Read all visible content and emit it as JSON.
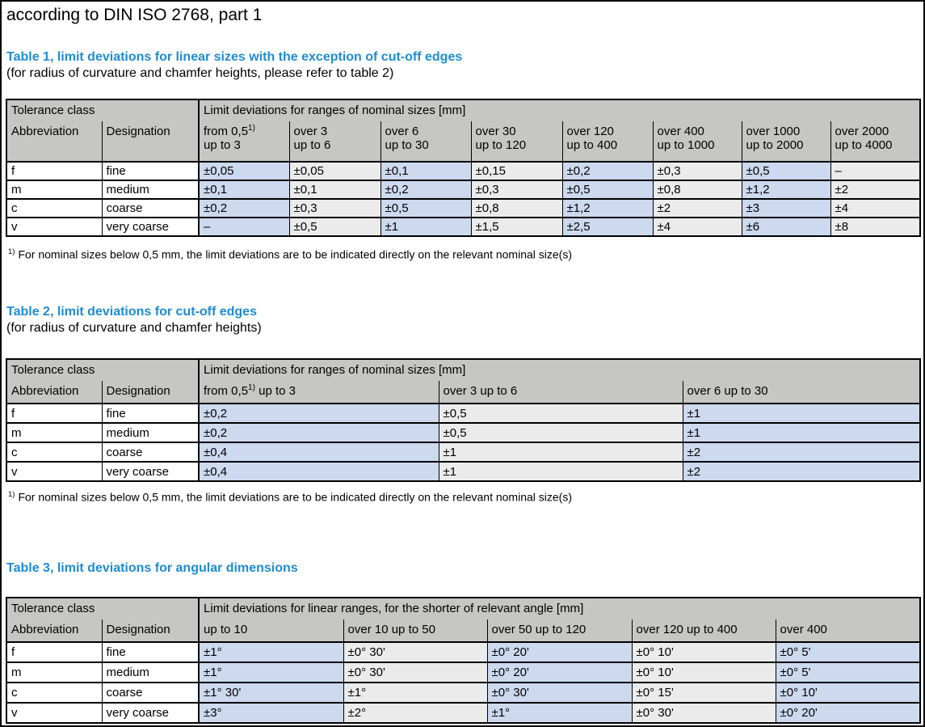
{
  "page_title": "according to DIN ISO 2768, part 1",
  "colors": {
    "heading_blue": "#1e8cd2",
    "cell_blue": "#ccd9ee",
    "cell_gray": "#ebebeb",
    "header_gray": "#c6c6c4"
  },
  "footnote": {
    "marker": "1)",
    "text": "For nominal sizes below 0,5 mm, the limit deviations are to be indicated directly on the relevant nominal size(s)"
  },
  "tables": [
    {
      "heading": "Table 1, limit deviations for linear sizes with the exception of cut-off edges",
      "subheading": "(for radius of curvature and chamfer heights, please refer to table 2)",
      "tolerance_class_label": "Tolerance class",
      "ranges_label": "Limit deviations for ranges of nominal sizes [mm]",
      "abbreviation_label": "Abbreviation",
      "designation_label": "Designation",
      "range_headers": [
        [
          {
            "t": "from 0,5"
          },
          {
            "sup": "1)"
          },
          {
            "t": "\nup to 3"
          }
        ],
        [
          {
            "t": "over 3\nup to 6"
          }
        ],
        [
          {
            "t": "over 6\nup to 30"
          }
        ],
        [
          {
            "t": "over 30\nup to 120"
          }
        ],
        [
          {
            "t": "over 120\nup to 400"
          }
        ],
        [
          {
            "t": "over 400\nup to 1000"
          }
        ],
        [
          {
            "t": "over 1000\nup to 2000"
          }
        ],
        [
          {
            "t": "over 2000\nup to 4000"
          }
        ]
      ],
      "rows": [
        {
          "abbreviation": "f",
          "designation": "fine",
          "values": [
            "±0,05",
            "±0,05",
            "±0,1",
            "±0,15",
            "±0,2",
            "±0,3",
            "±0,5",
            "–"
          ]
        },
        {
          "abbreviation": "m",
          "designation": "medium",
          "values": [
            "±0,1",
            "±0,1",
            "±0,2",
            "±0,3",
            "±0,5",
            "±0,8",
            "±1,2",
            "±2"
          ]
        },
        {
          "abbreviation": "c",
          "designation": "coarse",
          "values": [
            "±0,2",
            "±0,3",
            "±0,5",
            "±0,8",
            "±1,2",
            "±2",
            "±3",
            "±4"
          ]
        },
        {
          "abbreviation": "v",
          "designation": "very coarse",
          "values": [
            "–",
            "±0,5",
            "±1",
            "±1,5",
            "±2,5",
            "±4",
            "±6",
            "±8"
          ]
        }
      ]
    },
    {
      "heading": "Table 2, limit deviations for cut-off edges",
      "subheading": "(for radius of curvature and chamfer heights)",
      "tolerance_class_label": "Tolerance class",
      "ranges_label": "Limit deviations for ranges of nominal sizes [mm]",
      "abbreviation_label": "Abbreviation",
      "designation_label": "Designation",
      "range_headers": [
        [
          {
            "t": "from 0,5"
          },
          {
            "sup": "1)"
          },
          {
            "t": " up to 3"
          }
        ],
        [
          {
            "t": "over 3 up to 6"
          }
        ],
        [
          {
            "t": "over 6 up to 30"
          }
        ]
      ],
      "rows": [
        {
          "abbreviation": "f",
          "designation": "fine",
          "values": [
            "±0,2",
            "±0,5",
            "±1"
          ]
        },
        {
          "abbreviation": "m",
          "designation": "medium",
          "values": [
            "±0,2",
            "±0,5",
            "±1"
          ]
        },
        {
          "abbreviation": "c",
          "designation": "coarse",
          "values": [
            "±0,4",
            "±1",
            "±2"
          ]
        },
        {
          "abbreviation": "v",
          "designation": "very coarse",
          "values": [
            "±0,4",
            "±1",
            "±2"
          ]
        }
      ]
    },
    {
      "heading": "Table 3, limit deviations for angular dimensions",
      "subheading": "",
      "tolerance_class_label": "Tolerance class",
      "ranges_label": "Limit deviations for linear ranges, for the shorter of relevant angle [mm]",
      "abbreviation_label": "Abbreviation",
      "designation_label": "Designation",
      "range_headers": [
        [
          {
            "t": "up to 10"
          }
        ],
        [
          {
            "t": "over 10 up to 50"
          }
        ],
        [
          {
            "t": "over 50 up to 120"
          }
        ],
        [
          {
            "t": "over 120 up to 400"
          }
        ],
        [
          {
            "t": "over 400"
          }
        ]
      ],
      "rows": [
        {
          "abbreviation": "f",
          "designation": "fine",
          "values": [
            "±1°",
            "±0° 30'",
            "±0° 20'",
            "±0° 10'",
            "±0° 5'"
          ]
        },
        {
          "abbreviation": "m",
          "designation": "medium",
          "values": [
            "±1°",
            "±0° 30'",
            "±0° 20'",
            "±0° 10'",
            "±0° 5'"
          ]
        },
        {
          "abbreviation": "c",
          "designation": "coarse",
          "values": [
            "±1° 30'",
            "±1°",
            "±0° 30'",
            "±0° 15'",
            "±0° 10'"
          ]
        },
        {
          "abbreviation": "v",
          "designation": "very coarse",
          "values": [
            "±3°",
            "±2°",
            "±1°",
            "±0° 30'",
            "±0° 20'"
          ]
        }
      ]
    }
  ]
}
